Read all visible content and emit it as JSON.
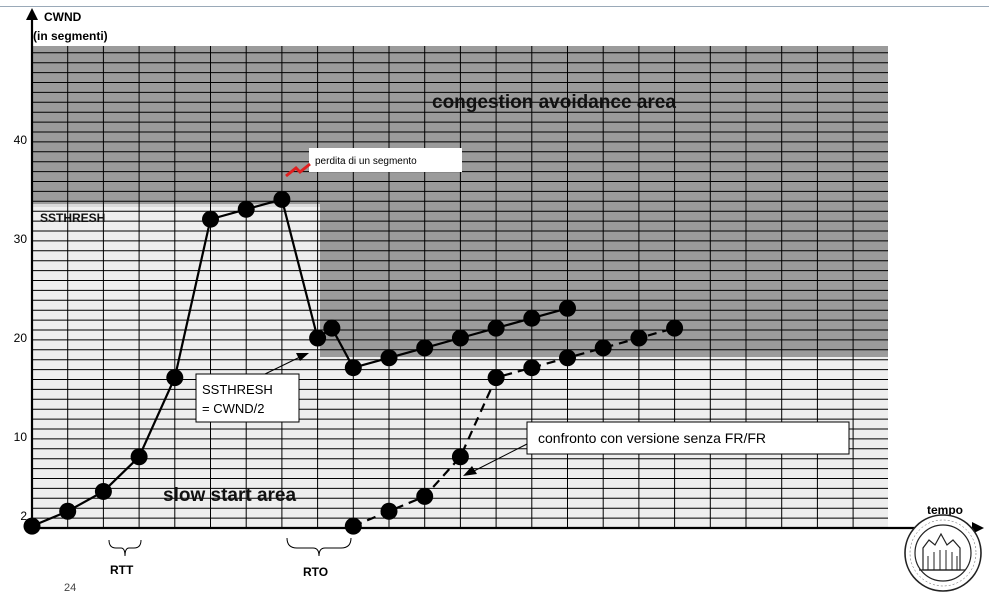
{
  "chart_data": {
    "type": "line",
    "y_axis_label": "CWND",
    "y_axis_label_2": "(in segmenti)",
    "x_axis_label": "tempo",
    "y_ticks": [
      "40",
      "30",
      "20",
      "10",
      "2"
    ],
    "ylim": [
      0,
      49
    ],
    "area_labels": {
      "congestion_avoidance": "congestion avoidance area",
      "slow_start": "slow start area",
      "ssthresh": "SSTHRESH"
    },
    "annotations": {
      "loss": "perdita di un segmento",
      "ssthresh_line1": "SSTHRESH",
      "ssthresh_line2": "= CWND/2",
      "comparison": "confronto con versione senza FR/FR",
      "rtt": "RTT",
      "rto": "RTO"
    },
    "series": [
      {
        "style": "solid",
        "points": [
          [
            0,
            1
          ],
          [
            1,
            2.5
          ],
          [
            2,
            4.5
          ],
          [
            3,
            8
          ],
          [
            4,
            16
          ],
          [
            5,
            32
          ],
          [
            6,
            33
          ],
          [
            7,
            34
          ],
          [
            8,
            20
          ],
          [
            8.4,
            21
          ],
          [
            9,
            17
          ],
          [
            10,
            18
          ],
          [
            11,
            19
          ],
          [
            12,
            20
          ],
          [
            13,
            21
          ],
          [
            14,
            22
          ],
          [
            15,
            23
          ]
        ]
      },
      {
        "style": "dashed",
        "points": [
          [
            9,
            1
          ],
          [
            10,
            2.5
          ],
          [
            11,
            4
          ],
          [
            12,
            8
          ],
          [
            13,
            16
          ],
          [
            14,
            17
          ],
          [
            15,
            18
          ],
          [
            16,
            19
          ],
          [
            17,
            20
          ],
          [
            18,
            21
          ]
        ]
      }
    ]
  },
  "slide_number": "24"
}
